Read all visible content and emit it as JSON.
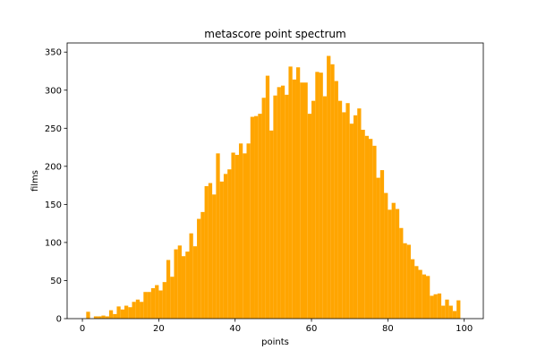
{
  "chart_data": {
    "type": "bar",
    "title": "metascore point spectrum",
    "xlabel": "points",
    "ylabel": "films",
    "xlim": [
      -4,
      105
    ],
    "ylim": [
      0,
      362
    ],
    "grid": false,
    "bar_color": "#ffa500",
    "x_ticks": [
      0,
      20,
      40,
      60,
      80,
      100
    ],
    "y_ticks": [
      0,
      50,
      100,
      150,
      200,
      250,
      300,
      350
    ],
    "x": [
      0,
      1,
      2,
      3,
      4,
      5,
      6,
      7,
      8,
      9,
      10,
      11,
      12,
      13,
      14,
      15,
      16,
      17,
      18,
      19,
      20,
      21,
      22,
      23,
      24,
      25,
      26,
      27,
      28,
      29,
      30,
      31,
      32,
      33,
      34,
      35,
      36,
      37,
      38,
      39,
      40,
      41,
      42,
      43,
      44,
      45,
      46,
      47,
      48,
      49,
      50,
      51,
      52,
      53,
      54,
      55,
      56,
      57,
      58,
      59,
      60,
      61,
      62,
      63,
      64,
      65,
      66,
      67,
      68,
      69,
      70,
      71,
      72,
      73,
      74,
      75,
      76,
      77,
      78,
      79,
      80,
      81,
      82,
      83,
      84,
      85,
      86,
      87,
      88,
      89,
      90,
      91,
      92,
      93,
      94,
      95,
      96,
      97,
      98,
      99,
      100
    ],
    "values": [
      0,
      9,
      0,
      3,
      3,
      4,
      3,
      11,
      6,
      16,
      12,
      17,
      15,
      22,
      25,
      22,
      35,
      35,
      40,
      44,
      37,
      48,
      77,
      55,
      91,
      96,
      82,
      88,
      112,
      95,
      131,
      140,
      174,
      178,
      163,
      217,
      180,
      190,
      196,
      218,
      215,
      230,
      217,
      230,
      265,
      266,
      269,
      290,
      319,
      247,
      293,
      304,
      306,
      294,
      331,
      314,
      330,
      310,
      310,
      269,
      286,
      324,
      323,
      292,
      345,
      334,
      312,
      286,
      271,
      283,
      256,
      267,
      276,
      248,
      240,
      236,
      227,
      185,
      195,
      165,
      143,
      152,
      144,
      119,
      99,
      97,
      78,
      69,
      64,
      58,
      56,
      30,
      32,
      33,
      17,
      25,
      17,
      10,
      24,
      0,
      0
    ]
  }
}
